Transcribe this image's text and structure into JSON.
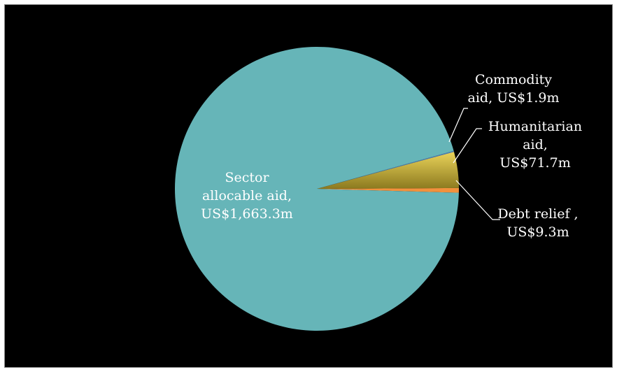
{
  "chart_data": {
    "type": "pie",
    "title": "",
    "currency_unit": "US$ million",
    "slices": [
      {
        "name": "Sector allocable aid",
        "value": 1663.3,
        "label_lines": [
          "Sector",
          "allocable aid,",
          "US$1,663.3m"
        ],
        "color": "#66b5b8",
        "label_color": "#ffffff"
      },
      {
        "name": "Debt relief",
        "value": 9.3,
        "label_lines": [
          "Debt relief ,",
          "US$9.3m"
        ],
        "color": "#f2913d",
        "label_color": "#ffffff"
      },
      {
        "name": "Humanitarian aid",
        "value": 71.7,
        "label_lines": [
          "Humanitarian",
          "aid,",
          "US$71.7m"
        ],
        "color": "#c9a834",
        "label_color": "#ffffff"
      },
      {
        "name": "Commodity aid",
        "value": 1.9,
        "label_lines": [
          "Commodity",
          "aid, US$1.9m"
        ],
        "color": "#4f81bd",
        "label_color": "#ffffff"
      }
    ],
    "legend": "none",
    "background": "#000000"
  }
}
